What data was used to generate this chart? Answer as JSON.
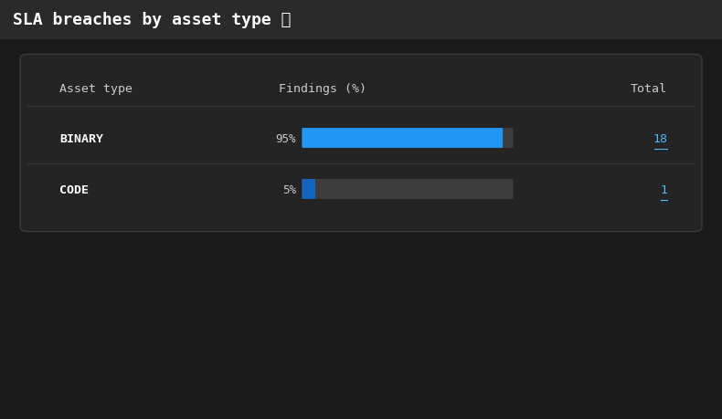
{
  "title": "SLA breaches by asset type",
  "title_icon": " ⓘ",
  "bg_color": "#1a1a1a",
  "title_bar_color": "#2a2a2a",
  "card_bg_color": "#242424",
  "card_border_color": "#3a3a3a",
  "header_text_color": "#cccccc",
  "row_text_color": "#ffffff",
  "total_text_color": "#4db8ff",
  "separator_color": "#3a3a3a",
  "bar_bg_color": "#3d3d3d",
  "bar_active_color": "#2196f3",
  "bar_inactive_blue_color": "#1565c0",
  "columns": [
    "Asset type",
    "Findings (%)",
    "Total"
  ],
  "rows": [
    {
      "asset": "BINARY",
      "pct": 95,
      "pct_label": "95%",
      "total": "18"
    },
    {
      "asset": "CODE",
      "pct": 5,
      "pct_label": "5%",
      "total": "1"
    }
  ],
  "figsize": [
    7.9,
    4.6
  ],
  "dpi": 100
}
